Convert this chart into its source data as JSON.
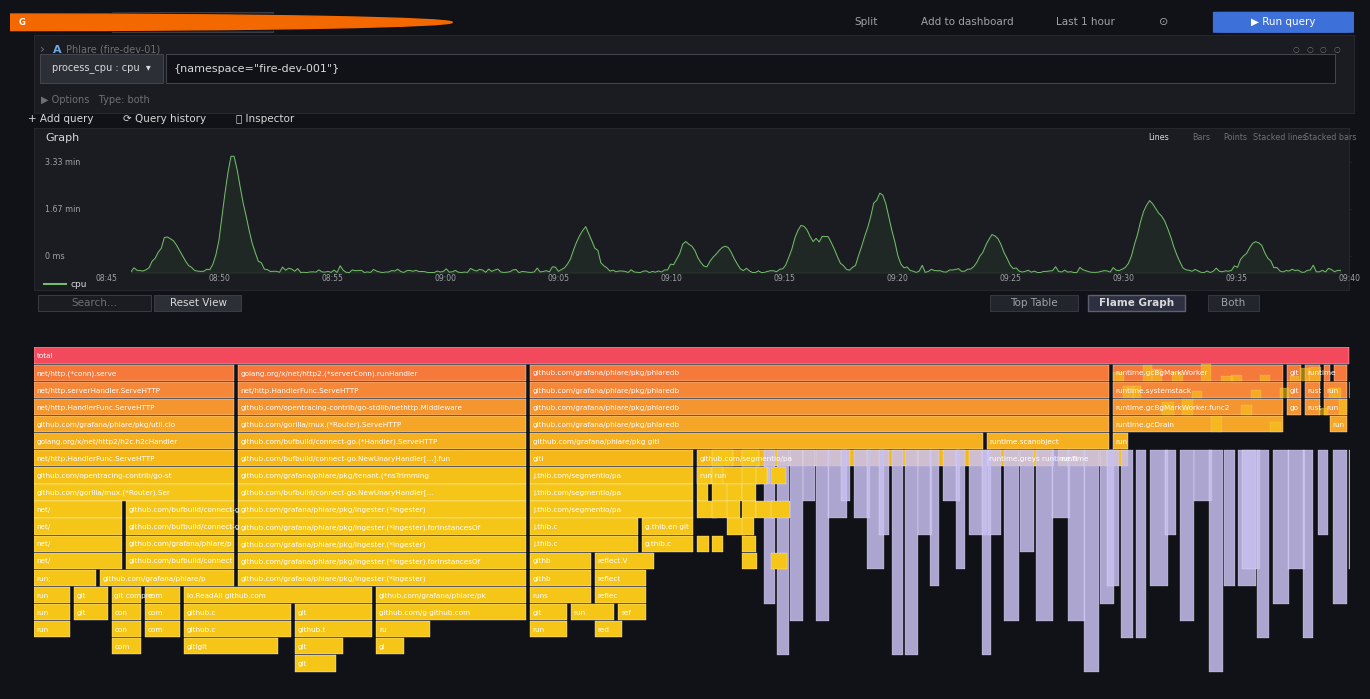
{
  "bg_color": "#111217",
  "topbar_color": "#161719",
  "panel_bg": "#1a1c21",
  "border_color": "#2c2f35",
  "input_border": "#3a3d45",
  "text_main": "#d8d9da",
  "text_dim": "#9fa3a8",
  "text_muted": "#6e7074",
  "green": "#73bf69",
  "run_btn_color": "#3d71d9",
  "flame_red": "#f2495c",
  "flame_orange1": "#f5793a",
  "flame_orange2": "#f58838",
  "flame_orange3": "#f59830",
  "flame_orange4": "#f5a828",
  "flame_yellow1": "#f5b820",
  "flame_yellow2": "#f5c518",
  "flame_lavender": "#c8c0f0",
  "x_ticks": [
    "08:45",
    "08:50",
    "08:55",
    "09:00",
    "09:05",
    "09:10",
    "09:15",
    "09:20",
    "09:25",
    "09:30",
    "09:35",
    "09:40"
  ],
  "y_ticks": [
    "3.33 min",
    "1.67 min",
    "0 ms"
  ],
  "datasource": "Phlare (fire-dev-01)",
  "query_text": "{namespace=\"fire-dev-001\"}",
  "metric_label": "process_cpu : cpu"
}
